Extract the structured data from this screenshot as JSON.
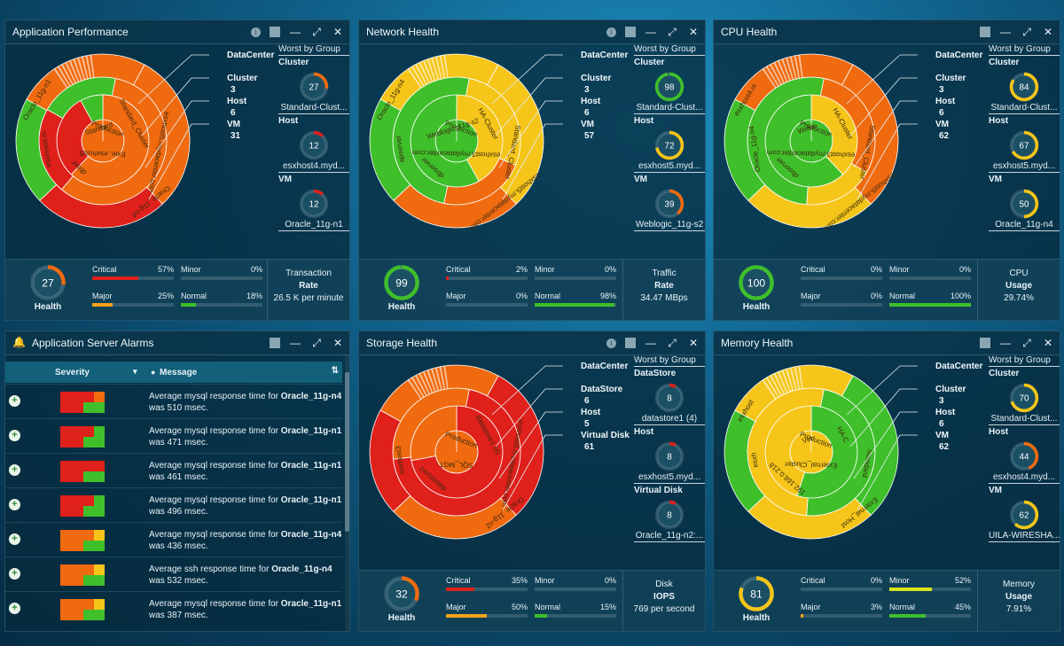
{
  "colors": {
    "critical": "#e0201b",
    "major": "#f4a21a",
    "minor": "#dbe21a",
    "normal": "#3fbf2a",
    "orange": "#f06a0f",
    "yellow": "#f5c519"
  },
  "panels": [
    {
      "title": "Application Performance",
      "legend": {
        "items": [
          {
            "label": "DataCenter",
            "value": ""
          },
          {
            "label": "Cluster",
            "value": "3"
          },
          {
            "label": "Host",
            "value": "6"
          },
          {
            "label": "VM",
            "value": "31"
          }
        ]
      },
      "worst": {
        "header": "Worst by Group",
        "groups": [
          {
            "group": "Cluster",
            "value": 27,
            "name": "Standard-Clust...",
            "color": "#f06a0f"
          },
          {
            "group": "Host",
            "value": 12,
            "name": "esxhost4.myd...",
            "color": "#e0201b"
          },
          {
            "group": "VM",
            "value": 12,
            "name": "Oracle_11g-n1",
            "color": "#e0201b"
          }
        ]
      },
      "footer": {
        "health": 27,
        "health_label": "Health",
        "health_color": "#f06a0f",
        "bars": [
          {
            "label": "Critical",
            "pct": "57%",
            "frac": 0.57,
            "color": "#e0201b"
          },
          {
            "label": "Minor",
            "pct": "0%",
            "frac": 0,
            "color": "#dbe21a"
          },
          {
            "label": "Major",
            "pct": "25%",
            "frac": 0.25,
            "color": "#f4a21a"
          },
          {
            "label": "Normal",
            "pct": "18%",
            "frac": 0.18,
            "color": "#3fbf2a"
          }
        ],
        "metric": {
          "l1": "Transaction",
          "l2": "Rate",
          "l3": "26.5 K per minute"
        }
      },
      "sun": {
        "labels": [
          "Production",
          "Standard_Cluster",
          "esxhost5.mydacenter.com",
          "Oracle_11g-n4",
          "Exte..esxhost5",
          "dbser",
          "esxhost4.m",
          "Oracle_11g-n1",
          "Standard"
        ]
      }
    },
    {
      "title": "Network Health",
      "legend": {
        "items": [
          {
            "label": "DataCenter",
            "value": ""
          },
          {
            "label": "Cluster",
            "value": "3"
          },
          {
            "label": "Host",
            "value": "6"
          },
          {
            "label": "VM",
            "value": "57"
          }
        ]
      },
      "worst": {
        "header": "Worst by Group",
        "groups": [
          {
            "group": "Cluster",
            "value": 98,
            "name": "Standard-Clust...",
            "color": "#3fbf2a"
          },
          {
            "group": "Host",
            "value": 72,
            "name": "esxhost5.myd...",
            "color": "#f5c519"
          },
          {
            "group": "VM",
            "value": 39,
            "name": "Weblogic_11g-s2",
            "color": "#f06a0f"
          }
        ]
      },
      "footer": {
        "health": 99,
        "health_label": "Health",
        "health_color": "#3fbf2a",
        "bars": [
          {
            "label": "Critical",
            "pct": "2%",
            "frac": 0.02,
            "color": "#e0201b"
          },
          {
            "label": "Minor",
            "pct": "0%",
            "frac": 0,
            "color": "#dbe21a"
          },
          {
            "label": "Major",
            "pct": "0%",
            "frac": 0,
            "color": "#f4a21a"
          },
          {
            "label": "Normal",
            "pct": "98%",
            "frac": 0.98,
            "color": "#3fbf2a"
          }
        ],
        "metric": {
          "l1": "Traffic",
          "l2": "Rate",
          "l3": "34.47 MBps"
        }
      },
      "sun": {
        "labels": [
          "Production",
          "HA-Cluster",
          "Standard_Cluster",
          "esxhost5.mydatacenter.com",
          "esxhost3.mydatacenter.com",
          "dbserver",
          "apserver",
          "Oracle_11g-n4",
          "Weblogic_11g-s2"
        ]
      }
    },
    {
      "title": "CPU Health",
      "legend": {
        "items": [
          {
            "label": "DataCenter",
            "value": ""
          },
          {
            "label": "Cluster",
            "value": "3"
          },
          {
            "label": "Host",
            "value": "6"
          },
          {
            "label": "VM",
            "value": "62"
          }
        ]
      },
      "worst": {
        "header": "Worst by Group",
        "groups": [
          {
            "group": "Cluster",
            "value": 84,
            "name": "Standard-Clust...",
            "color": "#f5c519"
          },
          {
            "group": "Host",
            "value": 67,
            "name": "esxhost5.myd...",
            "color": "#f5c519"
          },
          {
            "group": "VM",
            "value": 50,
            "name": "Oracle_11g-n4",
            "color": "#f5c519"
          }
        ]
      },
      "footer": {
        "health": 100,
        "health_label": "Health",
        "health_color": "#3fbf2a",
        "bars": [
          {
            "label": "Critical",
            "pct": "0%",
            "frac": 0,
            "color": "#e0201b"
          },
          {
            "label": "Minor",
            "pct": "0%",
            "frac": 0,
            "color": "#dbe21a"
          },
          {
            "label": "Major",
            "pct": "0%",
            "frac": 0,
            "color": "#f4a21a"
          },
          {
            "label": "Normal",
            "pct": "100%",
            "frac": 1,
            "color": "#3fbf2a"
          }
        ],
        "metric": {
          "l1": "CPU",
          "l2": "Usage",
          "l3": "29.74%"
        }
      },
      "sun": {
        "labels": [
          "Production",
          "HA-Cluster",
          "Standard_Cluster",
          "esxhost5.mydatacenter.com",
          "esxhost3.mydatacenter.com",
          "dbserver",
          "Oracle_11g-n4",
          "esxhost4.m",
          "Weblo"
        ]
      }
    },
    {
      "title": "Storage Health",
      "legend": {
        "items": [
          {
            "label": "DataCenter",
            "value": ""
          },
          {
            "label": "DataStore",
            "value": "6"
          },
          {
            "label": "Host",
            "value": "5"
          },
          {
            "label": "Virtual Disk",
            "value": "61"
          }
        ]
      },
      "worst": {
        "header": "Worst by Group",
        "groups": [
          {
            "group": "DataStore",
            "value": 8,
            "name": "datastore1 (4)",
            "color": "#e0201b"
          },
          {
            "group": "Host",
            "value": 8,
            "name": "esxhost5.myd...",
            "color": "#e0201b"
          },
          {
            "group": "Virtual Disk",
            "value": 8,
            "name": "Oracle_11g-n2:...",
            "color": "#e0201b"
          }
        ]
      },
      "footer": {
        "health": 32,
        "health_label": "Health",
        "health_color": "#f06a0f",
        "bars": [
          {
            "label": "Critical",
            "pct": "35%",
            "frac": 0.35,
            "color": "#e0201b"
          },
          {
            "label": "Minor",
            "pct": "0%",
            "frac": 0,
            "color": "#dbe21a"
          },
          {
            "label": "Major",
            "pct": "50%",
            "frac": 0.5,
            "color": "#f4a21a"
          },
          {
            "label": "Normal",
            "pct": "15%",
            "frac": 0.15,
            "color": "#3fbf2a"
          }
        ],
        "metric": {
          "l1": "Disk",
          "l2": "IOPS",
          "l3": "769 per second"
        }
      },
      "sun": {
        "labels": [
          "Production",
          "datastore1 (4)",
          "esxhost5.mydatacenter.com",
          "Oracle_11g-n2",
          "SQL_MGT",
          "datastore1",
          "esxhost3"
        ]
      }
    },
    {
      "title": "Memory Health",
      "legend": {
        "items": [
          {
            "label": "DataCenter",
            "value": ""
          },
          {
            "label": "Cluster",
            "value": "3"
          },
          {
            "label": "Host",
            "value": "6"
          },
          {
            "label": "VM",
            "value": "62"
          }
        ]
      },
      "worst": {
        "header": "Worst by Group",
        "groups": [
          {
            "group": "Cluster",
            "value": 70,
            "name": "Standard-Clust...",
            "color": "#f5c519"
          },
          {
            "group": "Host",
            "value": 44,
            "name": "esxhost4.myd...",
            "color": "#f06a0f"
          },
          {
            "group": "VM",
            "value": 62,
            "name": "UILA-WIRESHA...",
            "color": "#f5c519"
          }
        ]
      },
      "footer": {
        "health": 81,
        "health_label": "Health",
        "health_color": "#f5c519",
        "bars": [
          {
            "label": "Critical",
            "pct": "0%",
            "frac": 0,
            "color": "#e0201b"
          },
          {
            "label": "Minor",
            "pct": "52%",
            "frac": 0.52,
            "color": "#dbe21a"
          },
          {
            "label": "Major",
            "pct": "3%",
            "frac": 0.03,
            "color": "#f4a21a"
          },
          {
            "label": "Normal",
            "pct": "45%",
            "frac": 0.45,
            "color": "#3fbf2a"
          }
        ],
        "metric": {
          "l1": "Memory",
          "l2": "Usage",
          "l3": "7.91%"
        }
      },
      "sun": {
        "labels": [
          "Production",
          "HA-C",
          "Standard",
          "External_Host",
          "External_Cluster",
          "192.168.0.218",
          "esxh",
          "esxhost",
          "Virt"
        ]
      }
    }
  ],
  "alarms": {
    "title": "Application Server Alarms",
    "columns": {
      "severity": "Severity",
      "message": "Message"
    },
    "rows": [
      {
        "pre": "Average mysql response time for ",
        "bold": "Oracle_11g-n4",
        "post": " was 510 msec.",
        "sev": [
          "#e0201b",
          "#e0201b",
          "#f06a0f",
          "#3fbf2a"
        ]
      },
      {
        "pre": "Average mysql response time for ",
        "bold": "Oracle_11g-n1",
        "post": " was 471 msec.",
        "sev": [
          "#e0201b",
          "#e0201b",
          "#3fbf2a",
          "#3fbf2a"
        ]
      },
      {
        "pre": "Average mysql response time for ",
        "bold": "Oracle_11g-n1",
        "post": " was 461 msec.",
        "sev": [
          "#e0201b",
          "#e0201b",
          "#e0201b",
          "#3fbf2a"
        ]
      },
      {
        "pre": "Average mysql response time for ",
        "bold": "Oracle_11g-n1",
        "post": " was 496 msec.",
        "sev": [
          "#e0201b",
          "#e0201b",
          "#3fbf2a",
          "#3fbf2a"
        ]
      },
      {
        "pre": "Average mysql response time for ",
        "bold": "Oracle_11g-n4",
        "post": " was 436 msec.",
        "sev": [
          "#f06a0f",
          "#f06a0f",
          "#f5c519",
          "#3fbf2a"
        ]
      },
      {
        "pre": "Average ssh response time for ",
        "bold": "Oracle_11g-n4",
        "post": " was 532 msec.",
        "sev": [
          "#f06a0f",
          "#f06a0f",
          "#f5c519",
          "#3fbf2a"
        ]
      },
      {
        "pre": "Average mysql response time for ",
        "bold": "Oracle_11g-n1",
        "post": " was 387 msec.",
        "sev": [
          "#f06a0f",
          "#f06a0f",
          "#f5c519",
          "#3fbf2a"
        ]
      }
    ]
  }
}
